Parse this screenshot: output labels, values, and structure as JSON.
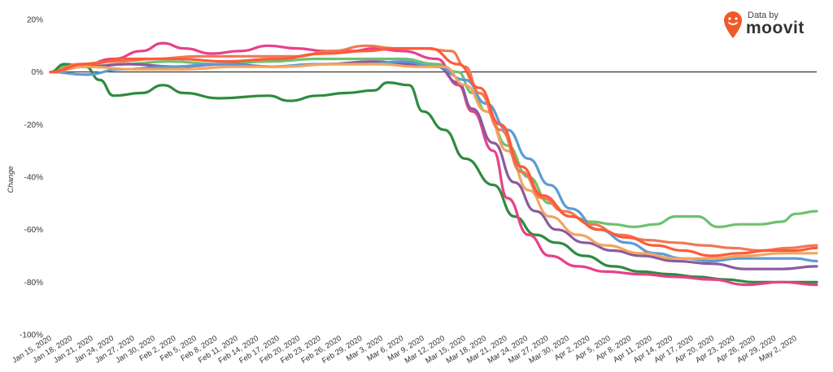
{
  "brand": {
    "prefix": "Data by",
    "name": "moovit",
    "accent": "#f05a28"
  },
  "chart_data": {
    "type": "line",
    "title": "",
    "xlabel": "",
    "ylabel": "Change",
    "ylim": [
      -100,
      20
    ],
    "y_unit": "%",
    "yticks": [
      "20%",
      "0%",
      "-20%",
      "-40%",
      "-60%",
      "-80%",
      "-100%"
    ],
    "xticks": [
      "Jan 15, 2020",
      "Jan 18, 2020",
      "Jan 21, 2020",
      "Jan 24, 2020",
      "Jan 27, 2020",
      "Jan 30, 2020",
      "Feb 2, 2020",
      "Feb 5, 2020",
      "Feb 8, 2020",
      "Feb 11, 2020",
      "Feb 14, 2020",
      "Feb 17, 2020",
      "Feb 20, 2020",
      "Feb 23, 2020",
      "Feb 26, 2020",
      "Feb 29, 2020",
      "Mar 3, 2020",
      "Mar 6, 2020",
      "Mar 9, 2020",
      "Mar 12, 2020",
      "Mar 15, 2020",
      "Mar 18, 2020",
      "Mar 21, 2020",
      "Mar 24, 2020",
      "Mar 27, 2020",
      "Mar 30, 2020",
      "Apr 2, 2020",
      "Apr 5, 2020",
      "Apr 8, 2020",
      "Apr 11, 2020",
      "Apr 14, 2020",
      "Apr 17, 2020",
      "Apr 20, 2020",
      "Apr 23, 2020",
      "Apr 26, 2020",
      "Apr 29, 2020",
      "May 2, 2020"
    ],
    "x_start": "2020-01-15",
    "x_end": "2020-05-03",
    "zero_line": true,
    "grid": false,
    "legend": "none",
    "series": [
      {
        "color": "#6fc16d",
        "points": [
          [
            "2020-01-15",
            0
          ],
          [
            "2020-01-17",
            2
          ],
          [
            "2020-01-20",
            2
          ],
          [
            "2020-01-25",
            3
          ],
          [
            "2020-02-01",
            4
          ],
          [
            "2020-02-08",
            3
          ],
          [
            "2020-02-15",
            4
          ],
          [
            "2020-02-22",
            5
          ],
          [
            "2020-02-29",
            5
          ],
          [
            "2020-03-05",
            5
          ],
          [
            "2020-03-10",
            3
          ],
          [
            "2020-03-13",
            0
          ],
          [
            "2020-03-15",
            -8
          ],
          [
            "2020-03-17",
            -15
          ],
          [
            "2020-03-20",
            -28
          ],
          [
            "2020-03-23",
            -40
          ],
          [
            "2020-03-26",
            -50
          ],
          [
            "2020-03-29",
            -55
          ],
          [
            "2020-04-01",
            -57
          ],
          [
            "2020-04-04",
            -58
          ],
          [
            "2020-04-07",
            -59
          ],
          [
            "2020-04-10",
            -58
          ],
          [
            "2020-04-13",
            -55
          ],
          [
            "2020-04-16",
            -55
          ],
          [
            "2020-04-19",
            -59
          ],
          [
            "2020-04-22",
            -58
          ],
          [
            "2020-04-25",
            -58
          ],
          [
            "2020-04-28",
            -57
          ],
          [
            "2020-04-30",
            -54
          ],
          [
            "2020-05-03",
            -53
          ]
        ]
      },
      {
        "color": "#2e8b3d",
        "points": [
          [
            "2020-01-15",
            0
          ],
          [
            "2020-01-17",
            3
          ],
          [
            "2020-01-20",
            2
          ],
          [
            "2020-01-22",
            -3
          ],
          [
            "2020-01-24",
            -9
          ],
          [
            "2020-01-28",
            -8
          ],
          [
            "2020-01-31",
            -5
          ],
          [
            "2020-02-03",
            -8
          ],
          [
            "2020-02-08",
            -10
          ],
          [
            "2020-02-15",
            -9
          ],
          [
            "2020-02-18",
            -11
          ],
          [
            "2020-02-22",
            -9
          ],
          [
            "2020-02-26",
            -8
          ],
          [
            "2020-03-01",
            -7
          ],
          [
            "2020-03-03",
            -4
          ],
          [
            "2020-03-06",
            -5
          ],
          [
            "2020-03-08",
            -15
          ],
          [
            "2020-03-11",
            -22
          ],
          [
            "2020-03-14",
            -33
          ],
          [
            "2020-03-18",
            -43
          ],
          [
            "2020-03-21",
            -55
          ],
          [
            "2020-03-24",
            -62
          ],
          [
            "2020-03-27",
            -65
          ],
          [
            "2020-03-31",
            -70
          ],
          [
            "2020-04-04",
            -74
          ],
          [
            "2020-04-08",
            -76
          ],
          [
            "2020-04-12",
            -77
          ],
          [
            "2020-04-16",
            -78
          ],
          [
            "2020-04-20",
            -79
          ],
          [
            "2020-04-24",
            -80
          ],
          [
            "2020-04-28",
            -80
          ],
          [
            "2020-05-03",
            -80
          ]
        ]
      },
      {
        "color": "#e8408a",
        "points": [
          [
            "2020-01-15",
            0
          ],
          [
            "2020-01-19",
            2
          ],
          [
            "2020-01-24",
            5
          ],
          [
            "2020-01-28",
            8
          ],
          [
            "2020-01-31",
            11
          ],
          [
            "2020-02-03",
            9
          ],
          [
            "2020-02-07",
            7
          ],
          [
            "2020-02-11",
            8
          ],
          [
            "2020-02-15",
            10
          ],
          [
            "2020-02-19",
            9
          ],
          [
            "2020-02-23",
            8
          ],
          [
            "2020-02-27",
            8
          ],
          [
            "2020-03-01",
            9
          ],
          [
            "2020-03-05",
            8
          ],
          [
            "2020-03-10",
            5
          ],
          [
            "2020-03-13",
            -5
          ],
          [
            "2020-03-15",
            -15
          ],
          [
            "2020-03-18",
            -30
          ],
          [
            "2020-03-20",
            -48
          ],
          [
            "2020-03-23",
            -62
          ],
          [
            "2020-03-26",
            -70
          ],
          [
            "2020-03-30",
            -74
          ],
          [
            "2020-04-03",
            -76
          ],
          [
            "2020-04-08",
            -77
          ],
          [
            "2020-04-13",
            -78
          ],
          [
            "2020-04-18",
            -79
          ],
          [
            "2020-04-23",
            -81
          ],
          [
            "2020-04-28",
            -80
          ],
          [
            "2020-05-03",
            -81
          ]
        ]
      },
      {
        "color": "#8a5a9e",
        "points": [
          [
            "2020-01-15",
            0
          ],
          [
            "2020-01-20",
            2
          ],
          [
            "2020-01-26",
            3
          ],
          [
            "2020-02-02",
            2
          ],
          [
            "2020-02-09",
            3
          ],
          [
            "2020-02-16",
            2
          ],
          [
            "2020-02-23",
            3
          ],
          [
            "2020-03-01",
            4
          ],
          [
            "2020-03-06",
            3
          ],
          [
            "2020-03-10",
            2
          ],
          [
            "2020-03-13",
            -4
          ],
          [
            "2020-03-15",
            -14
          ],
          [
            "2020-03-18",
            -27
          ],
          [
            "2020-03-21",
            -42
          ],
          [
            "2020-03-24",
            -53
          ],
          [
            "2020-03-27",
            -60
          ],
          [
            "2020-03-31",
            -65
          ],
          [
            "2020-04-04",
            -68
          ],
          [
            "2020-04-08",
            -70
          ],
          [
            "2020-04-13",
            -72
          ],
          [
            "2020-04-18",
            -73
          ],
          [
            "2020-04-23",
            -75
          ],
          [
            "2020-04-28",
            -75
          ],
          [
            "2020-05-03",
            -74
          ]
        ]
      },
      {
        "color": "#5b9bd5",
        "points": [
          [
            "2020-01-15",
            0
          ],
          [
            "2020-01-20",
            -1
          ],
          [
            "2020-01-25",
            1
          ],
          [
            "2020-02-01",
            2
          ],
          [
            "2020-02-08",
            3
          ],
          [
            "2020-02-15",
            2
          ],
          [
            "2020-02-22",
            3
          ],
          [
            "2020-02-29",
            3
          ],
          [
            "2020-03-05",
            4
          ],
          [
            "2020-03-10",
            2
          ],
          [
            "2020-03-14",
            -3
          ],
          [
            "2020-03-17",
            -12
          ],
          [
            "2020-03-20",
            -22
          ],
          [
            "2020-03-23",
            -33
          ],
          [
            "2020-03-26",
            -43
          ],
          [
            "2020-03-29",
            -52
          ],
          [
            "2020-04-02",
            -60
          ],
          [
            "2020-04-06",
            -65
          ],
          [
            "2020-04-10",
            -69
          ],
          [
            "2020-04-14",
            -71
          ],
          [
            "2020-04-18",
            -72
          ],
          [
            "2020-04-22",
            -71
          ],
          [
            "2020-04-26",
            -71
          ],
          [
            "2020-04-30",
            -71
          ],
          [
            "2020-05-03",
            -72
          ]
        ]
      },
      {
        "color": "#f4a460",
        "points": [
          [
            "2020-01-15",
            0
          ],
          [
            "2020-01-20",
            2
          ],
          [
            "2020-01-27",
            1
          ],
          [
            "2020-02-03",
            1
          ],
          [
            "2020-02-10",
            2
          ],
          [
            "2020-02-17",
            2
          ],
          [
            "2020-02-24",
            3
          ],
          [
            "2020-03-02",
            3
          ],
          [
            "2020-03-07",
            2
          ],
          [
            "2020-03-11",
            2
          ],
          [
            "2020-03-14",
            -5
          ],
          [
            "2020-03-17",
            -15
          ],
          [
            "2020-03-20",
            -30
          ],
          [
            "2020-03-23",
            -45
          ],
          [
            "2020-03-26",
            -55
          ],
          [
            "2020-03-30",
            -62
          ],
          [
            "2020-04-03",
            -66
          ],
          [
            "2020-04-08",
            -69
          ],
          [
            "2020-04-13",
            -71
          ],
          [
            "2020-04-18",
            -71
          ],
          [
            "2020-04-23",
            -70
          ],
          [
            "2020-04-28",
            -69
          ],
          [
            "2020-05-03",
            -69
          ]
        ]
      },
      {
        "color": "#f07854",
        "points": [
          [
            "2020-01-15",
            0
          ],
          [
            "2020-01-19",
            3
          ],
          [
            "2020-01-24",
            4
          ],
          [
            "2020-01-30",
            5
          ],
          [
            "2020-02-05",
            6
          ],
          [
            "2020-02-12",
            6
          ],
          [
            "2020-02-19",
            6
          ],
          [
            "2020-02-24",
            8
          ],
          [
            "2020-02-29",
            10
          ],
          [
            "2020-03-04",
            9
          ],
          [
            "2020-03-08",
            9
          ],
          [
            "2020-03-12",
            8
          ],
          [
            "2020-03-14",
            2
          ],
          [
            "2020-03-16",
            -8
          ],
          [
            "2020-03-19",
            -22
          ],
          [
            "2020-03-22",
            -38
          ],
          [
            "2020-03-25",
            -48
          ],
          [
            "2020-03-28",
            -53
          ],
          [
            "2020-04-01",
            -58
          ],
          [
            "2020-04-05",
            -62
          ],
          [
            "2020-04-09",
            -64
          ],
          [
            "2020-04-13",
            -65
          ],
          [
            "2020-04-17",
            -66
          ],
          [
            "2020-04-21",
            -67
          ],
          [
            "2020-04-25",
            -68
          ],
          [
            "2020-04-29",
            -67
          ],
          [
            "2020-05-03",
            -66
          ]
        ]
      },
      {
        "color": "#ff5a38",
        "points": [
          [
            "2020-01-15",
            0
          ],
          [
            "2020-01-20",
            3
          ],
          [
            "2020-01-26",
            5
          ],
          [
            "2020-02-02",
            5
          ],
          [
            "2020-02-09",
            4
          ],
          [
            "2020-02-16",
            5
          ],
          [
            "2020-02-23",
            7
          ],
          [
            "2020-02-29",
            8
          ],
          [
            "2020-03-04",
            9
          ],
          [
            "2020-03-09",
            9
          ],
          [
            "2020-03-13",
            3
          ],
          [
            "2020-03-16",
            -6
          ],
          [
            "2020-03-19",
            -20
          ],
          [
            "2020-03-22",
            -36
          ],
          [
            "2020-03-25",
            -47
          ],
          [
            "2020-03-29",
            -55
          ],
          [
            "2020-04-02",
            -60
          ],
          [
            "2020-04-06",
            -63
          ],
          [
            "2020-04-10",
            -66
          ],
          [
            "2020-04-14",
            -68
          ],
          [
            "2020-04-18",
            -70
          ],
          [
            "2020-04-22",
            -69
          ],
          [
            "2020-04-26",
            -68
          ],
          [
            "2020-04-30",
            -68
          ],
          [
            "2020-05-03",
            -67
          ]
        ]
      }
    ]
  }
}
